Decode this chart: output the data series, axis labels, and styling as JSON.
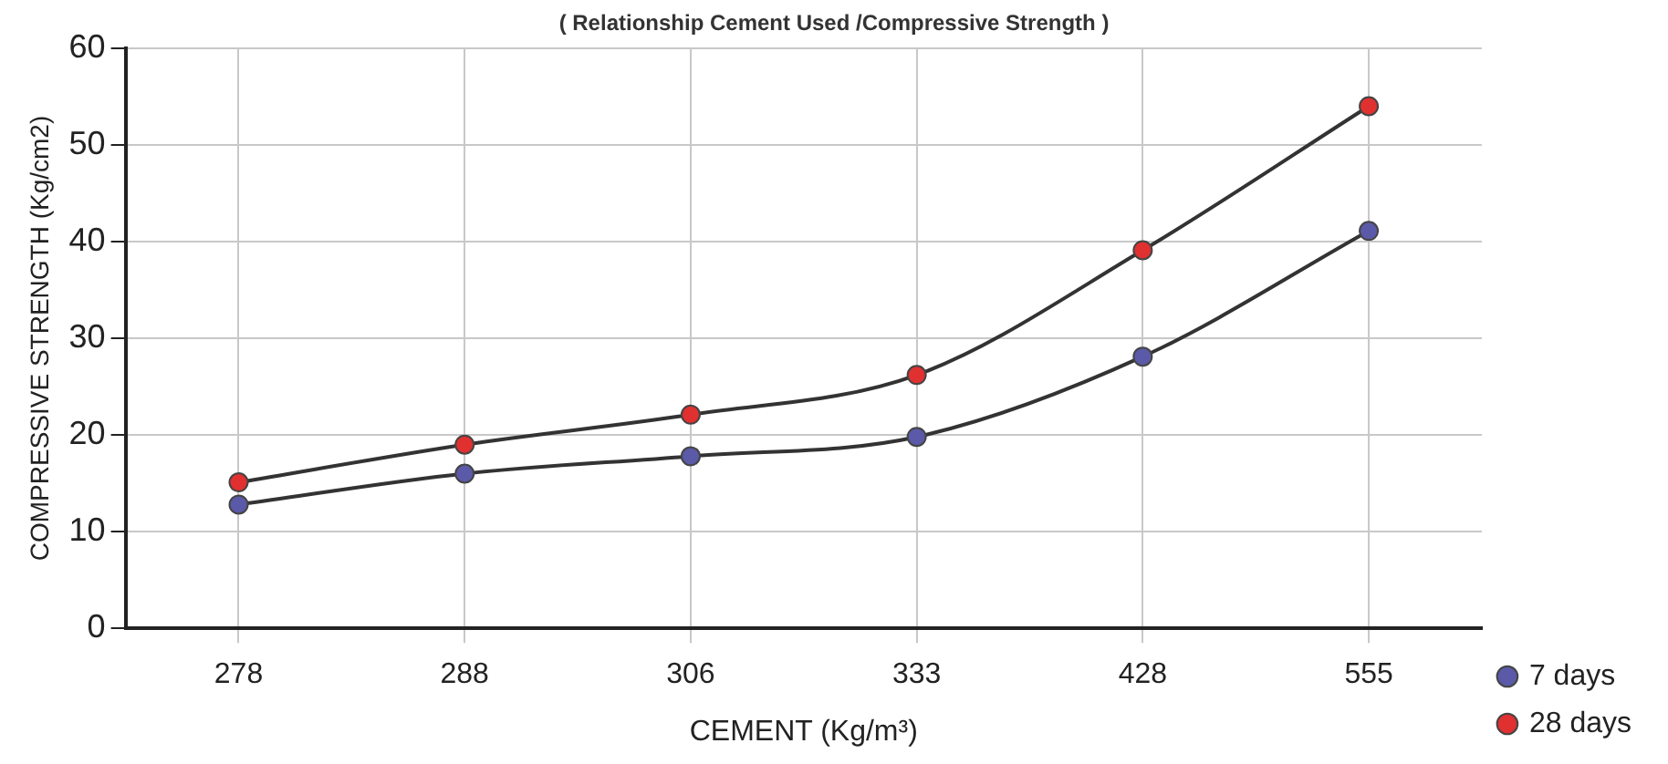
{
  "chart_data": {
    "type": "line",
    "title": "( Relationship Cement Used /Compressive Strength )",
    "xlabel": "CEMENT (Kg/m³)",
    "ylabel": "COMPRESSIVE STRENGTH (Kg/cm2)",
    "categories": [
      "278",
      "288",
      "306",
      "333",
      "428",
      "555"
    ],
    "series": [
      {
        "name": "7 days",
        "color": "#5a5aa8",
        "values": [
          12.8,
          16,
          17.8,
          19.8,
          28.1,
          41.1
        ]
      },
      {
        "name": "28 days",
        "color": "#e03030",
        "values": [
          15.1,
          19,
          22.1,
          26.2,
          39.1,
          54
        ]
      }
    ],
    "ylim": [
      0,
      60
    ],
    "yticks": [
      0,
      10,
      20,
      30,
      40,
      50,
      60
    ],
    "grid": true,
    "legend": "bottom right",
    "marker": "circle",
    "line_style": "solid"
  }
}
